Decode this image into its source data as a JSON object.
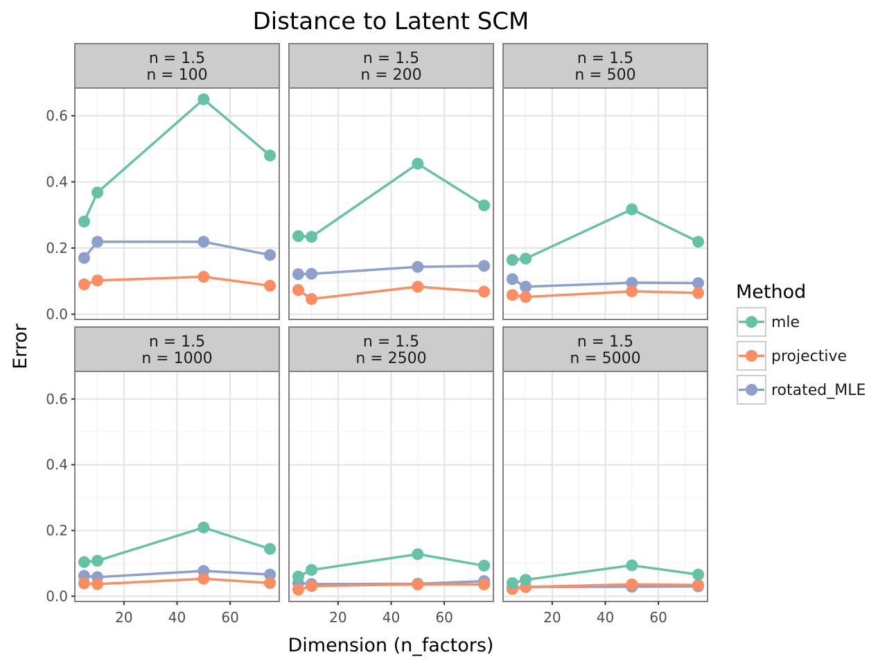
{
  "chart_data": {
    "type": "line",
    "title": "Distance to Latent SCM",
    "xlabel": "Dimension (n_factors)",
    "ylabel": "Error",
    "x_ticks": [
      20,
      40,
      60
    ],
    "y_ticks": [
      "0.0",
      "0.2",
      "0.4",
      "0.6"
    ],
    "xlim": [
      1.5,
      78.5
    ],
    "ylim": [
      -0.016,
      0.684
    ],
    "grid": true,
    "legend": {
      "title": "Method",
      "position": "right",
      "entries": [
        "mle",
        "projective",
        "rotated_MLE"
      ]
    },
    "colors": {
      "mle": "#66c2a5",
      "projective": "#fc8d62",
      "rotated_MLE": "#8da0cb"
    },
    "x": [
      5,
      10,
      50,
      75
    ],
    "panels": [
      {
        "label1": "n = 1.5",
        "label2": "n = 100",
        "series": [
          {
            "name": "mle",
            "values": [
              0.28,
              0.368,
              0.65,
              0.48
            ]
          },
          {
            "name": "projective",
            "values": [
              0.09,
              0.102,
              0.113,
              0.086
            ]
          },
          {
            "name": "rotated_MLE",
            "values": [
              0.17,
              0.219,
              0.219,
              0.179
            ]
          }
        ]
      },
      {
        "label1": "n = 1.5",
        "label2": "n = 200",
        "series": [
          {
            "name": "mle",
            "values": [
              0.236,
              0.234,
              0.455,
              0.329
            ]
          },
          {
            "name": "projective",
            "values": [
              0.073,
              0.046,
              0.083,
              0.068
            ]
          },
          {
            "name": "rotated_MLE",
            "values": [
              0.121,
              0.122,
              0.143,
              0.146
            ]
          }
        ]
      },
      {
        "label1": "n = 1.5",
        "label2": "n = 500",
        "series": [
          {
            "name": "mle",
            "values": [
              0.164,
              0.168,
              0.317,
              0.219
            ]
          },
          {
            "name": "projective",
            "values": [
              0.058,
              0.052,
              0.069,
              0.064
            ]
          },
          {
            "name": "rotated_MLE",
            "values": [
              0.106,
              0.083,
              0.095,
              0.094
            ]
          }
        ]
      },
      {
        "label1": "n = 1.5",
        "label2": "n = 1000",
        "series": [
          {
            "name": "mle",
            "values": [
              0.104,
              0.108,
              0.209,
              0.144
            ]
          },
          {
            "name": "projective",
            "values": [
              0.039,
              0.037,
              0.053,
              0.04
            ]
          },
          {
            "name": "rotated_MLE",
            "values": [
              0.062,
              0.058,
              0.077,
              0.066
            ]
          }
        ]
      },
      {
        "label1": "n = 1.5",
        "label2": "n = 2500",
        "series": [
          {
            "name": "mle",
            "values": [
              0.06,
              0.08,
              0.128,
              0.093
            ]
          },
          {
            "name": "projective",
            "values": [
              0.02,
              0.031,
              0.036,
              0.036
            ]
          },
          {
            "name": "rotated_MLE",
            "values": [
              0.04,
              0.037,
              0.038,
              0.046
            ]
          }
        ]
      },
      {
        "label1": "n = 1.5",
        "label2": "n = 5000",
        "series": [
          {
            "name": "mle",
            "values": [
              0.04,
              0.05,
              0.094,
              0.066
            ]
          },
          {
            "name": "projective",
            "values": [
              0.022,
              0.028,
              0.036,
              0.034
            ]
          },
          {
            "name": "rotated_MLE",
            "values": [
              0.026,
              0.028,
              0.029,
              0.03
            ]
          }
        ]
      }
    ]
  }
}
